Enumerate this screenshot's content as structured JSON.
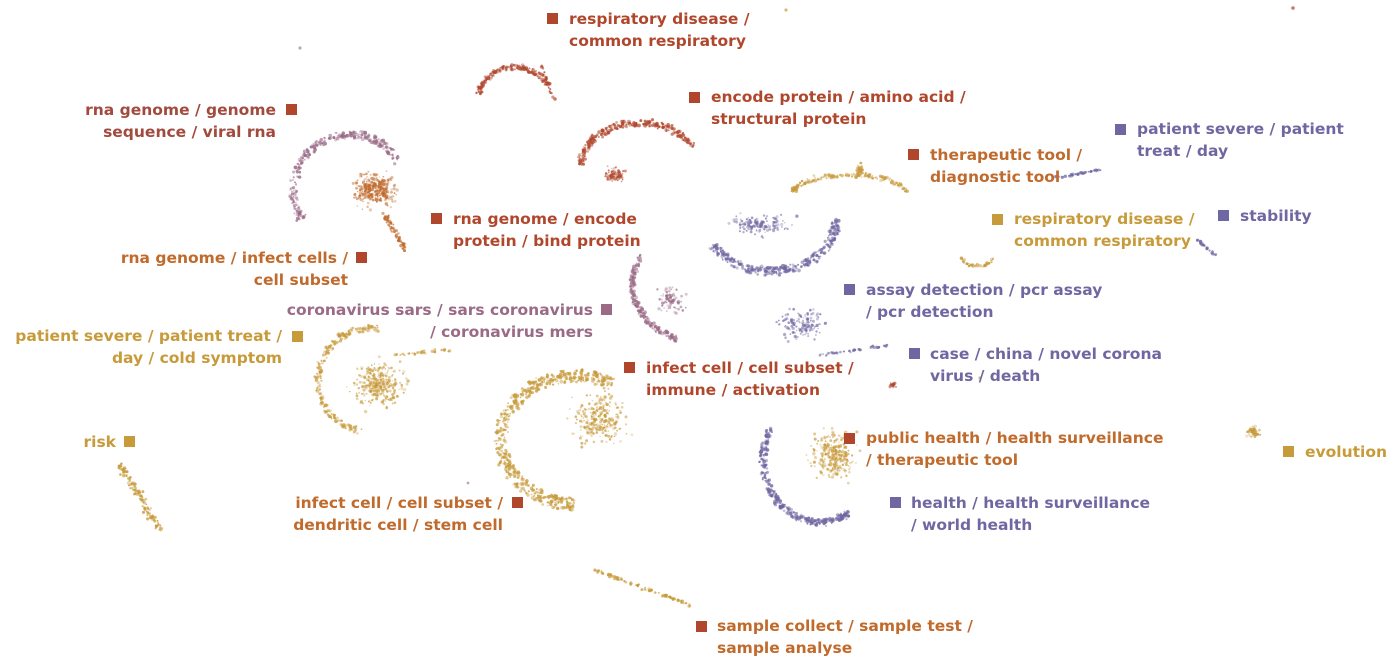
{
  "colors": {
    "red": "#b0472c",
    "orange": "#c06a2c",
    "gold": "#c79a3a",
    "mauve": "#9a6a86",
    "purple": "#6f67a1"
  },
  "labels": [
    {
      "id": "respiratory-disease-red",
      "lines": [
        "respiratory disease /",
        "common respiratory"
      ],
      "color": "red"
    },
    {
      "id": "encode-protein",
      "lines": [
        "encode protein / amino acid /",
        "structural protein"
      ],
      "color": "red"
    },
    {
      "id": "rna-genome-sequence",
      "lines": [
        "rna genome / genome",
        "sequence / viral rna"
      ],
      "color": "mauve"
    },
    {
      "id": "patient-severe-purple",
      "lines": [
        "patient severe / patient",
        "treat / day"
      ],
      "color": "purple"
    },
    {
      "id": "therapeutic-tool",
      "lines": [
        "therapeutic tool /",
        "diagnostic tool"
      ],
      "color": "orange"
    },
    {
      "id": "rna-genome-encode",
      "lines": [
        "rna genome / encode",
        "protein / bind protein"
      ],
      "color": "red"
    },
    {
      "id": "respiratory-disease-gold",
      "lines": [
        "respiratory disease /",
        "common respiratory"
      ],
      "color": "gold"
    },
    {
      "id": "stability",
      "lines": [
        "stability"
      ],
      "color": "purple"
    },
    {
      "id": "rna-genome-infect",
      "lines": [
        "rna genome / infect cells /",
        "cell subset"
      ],
      "color": "orange"
    },
    {
      "id": "assay-detection",
      "lines": [
        "assay detection / pcr assay",
        "/ pcr detection"
      ],
      "color": "purple"
    },
    {
      "id": "coronavirus-sars",
      "lines": [
        "coronavirus sars / sars coronavirus",
        "/ coronavirus mers"
      ],
      "color": "mauve"
    },
    {
      "id": "patient-severe-gold",
      "lines": [
        "patient severe / patient treat /",
        "day / cold symptom"
      ],
      "color": "gold"
    },
    {
      "id": "case-china",
      "lines": [
        "case / china / novel corona",
        "virus / death"
      ],
      "color": "purple"
    },
    {
      "id": "infect-cell-immune",
      "lines": [
        "infect cell / cell subset /",
        "immune / activation"
      ],
      "color": "red"
    },
    {
      "id": "risk",
      "lines": [
        "risk"
      ],
      "color": "gold"
    },
    {
      "id": "public-health",
      "lines": [
        "public health / health surveillance",
        "/ therapeutic tool"
      ],
      "color": "orange"
    },
    {
      "id": "evolution",
      "lines": [
        "evolution"
      ],
      "color": "gold"
    },
    {
      "id": "infect-cell-dendritic",
      "lines": [
        "infect cell / cell subset /",
        "dendritic cell / stem cell"
      ],
      "color": "orange"
    },
    {
      "id": "health-surveillance",
      "lines": [
        "health / health surveillance",
        "/ world health"
      ],
      "color": "purple"
    },
    {
      "id": "sample-collect",
      "lines": [
        "sample collect / sample test /",
        "sample analyse"
      ],
      "color": "orange"
    }
  ]
}
